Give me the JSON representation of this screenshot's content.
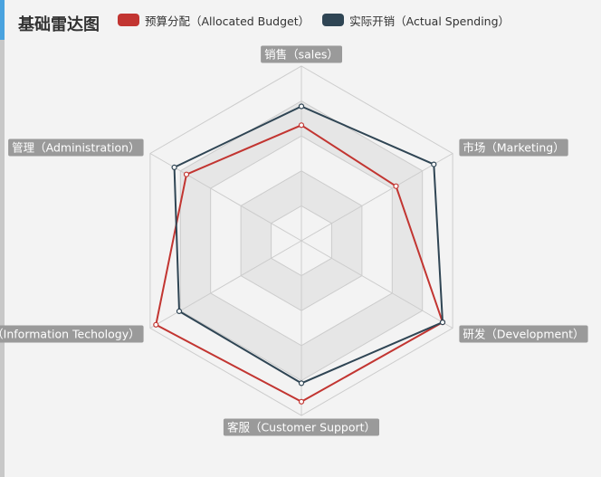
{
  "title": "基础雷达图",
  "legend": [
    {
      "label": "预算分配（Allocated Budget）",
      "color": "#c23531"
    },
    {
      "label": "实际开销（Actual Spending）",
      "color": "#2f4554"
    }
  ],
  "chart_data": {
    "type": "radar",
    "title": "基础雷达图",
    "indicators": [
      {
        "name": "销售（sales）",
        "max": 6500
      },
      {
        "name": "市场（Marketing）",
        "max": 16000
      },
      {
        "name": "研发（Development）",
        "max": 30000
      },
      {
        "name": "客服（Customer Support）",
        "max": 38000
      },
      {
        "name": "信息技术（Information Techology）",
        "max": 52000
      },
      {
        "name": "管理（Administration）",
        "max": 25000
      }
    ],
    "series": [
      {
        "name": "预算分配（Allocated Budget）",
        "color": "#c23531",
        "values": [
          4300,
          10000,
          28000,
          35000,
          50000,
          19000
        ]
      },
      {
        "name": "实际开销（Actual Spending）",
        "color": "#2f4554",
        "values": [
          5000,
          14000,
          28000,
          31000,
          42000,
          21000
        ]
      }
    ],
    "split_number": 5,
    "split_area_colors": [
      "#f3f3f3",
      "#e6e6e6"
    ],
    "split_line_color": "#cccccc",
    "legend_position": "top"
  }
}
